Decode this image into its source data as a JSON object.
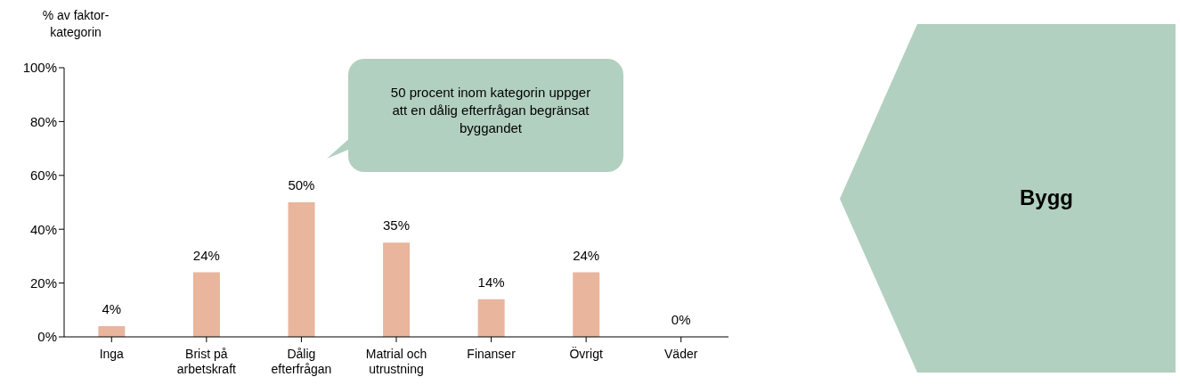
{
  "chart_data": {
    "type": "bar",
    "ylabel": "% av faktor-\nkategorin",
    "categories": [
      "Inga",
      "Brist på\narbetskraft",
      "Dålig\nefterfrågan",
      "Matrial och\nutrustning",
      "Finanser",
      "Övrigt",
      "Väder"
    ],
    "values": [
      4,
      24,
      50,
      35,
      14,
      24,
      0
    ],
    "value_labels": [
      "4%",
      "24%",
      "50%",
      "35%",
      "14%",
      "24%",
      "0%"
    ],
    "color": "#e9b59d",
    "ylim": [
      0,
      100
    ],
    "yticks": [
      {
        "value": 0,
        "label": "0%"
      },
      {
        "value": 20,
        "label": "20%"
      },
      {
        "value": 40,
        "label": "40%"
      },
      {
        "value": 60,
        "label": "60%"
      },
      {
        "value": 80,
        "label": "80%"
      },
      {
        "value": 100,
        "label": "100%"
      }
    ],
    "grid": false,
    "annotations": [
      "50 procent inom kategorin uppger att en dålig efterfrågan begränsat byggandet",
      "Bygg"
    ]
  }
}
